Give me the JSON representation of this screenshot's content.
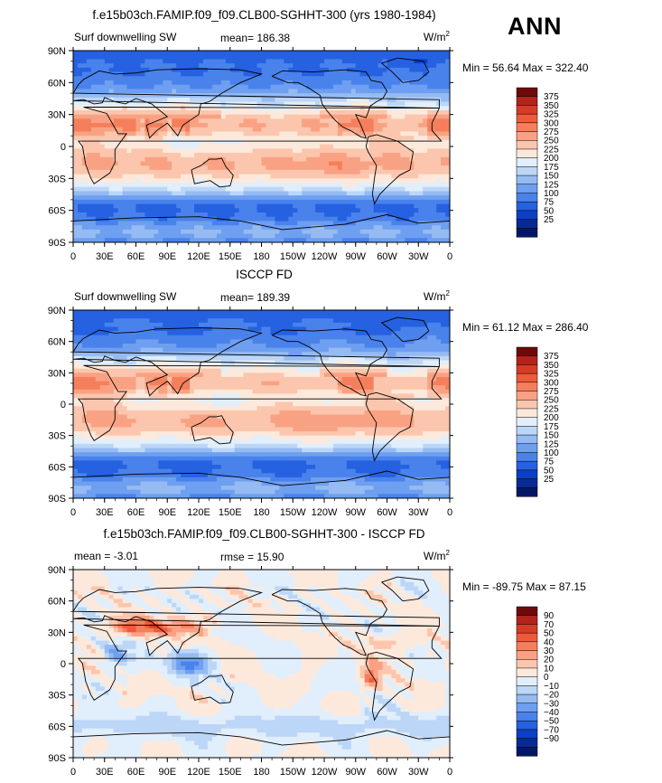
{
  "season": "ANN",
  "chart_data": [
    {
      "type": "heatmap",
      "title": "f.e15b03ch.FAMIP.f09_f09.CLB00-SGHHT-300 (yrs 1980-1984)",
      "left_label": "Surf downwelling SW",
      "stat_text": "mean= 186.38",
      "stat2_text": "",
      "units_text": "W/m",
      "units_sup": "2",
      "min_max_text": "Min =  56.64 Max = 322.40",
      "x_ticks": [
        "0",
        "30E",
        "60E",
        "90E",
        "120E",
        "150E",
        "180",
        "150W",
        "120W",
        "90W",
        "60W",
        "30W",
        "0"
      ],
      "y_ticks": [
        "90N",
        "60N",
        "30N",
        "0",
        "30S",
        "60S",
        "90S"
      ],
      "levels": [
        "375",
        "350",
        "325",
        "300",
        "275",
        "250",
        "225",
        "200",
        "175",
        "150",
        "125",
        "100",
        "75",
        "50",
        "25"
      ],
      "colors": [
        "#6e0a0a",
        "#b2231c",
        "#d63b27",
        "#ef5a3a",
        "#f57f5c",
        "#f9a283",
        "#fbc6ad",
        "#fde9dc",
        "#e1eefb",
        "#bcd6f7",
        "#95bbf2",
        "#6e9ff0",
        "#4a82ec",
        "#2561e0",
        "#0a3fc6",
        "#082a94",
        "#041766"
      ],
      "field": "model_sw",
      "mean": 186.38,
      "min": 56.64,
      "max": 322.4
    },
    {
      "type": "heatmap",
      "title": "ISCCP FD",
      "left_label": "Surf downwelling SW",
      "stat_text": "mean= 189.39",
      "stat2_text": "",
      "units_text": "W/m",
      "units_sup": "2",
      "min_max_text": "Min =  61.12 Max = 286.40",
      "x_ticks": [
        "0",
        "30E",
        "60E",
        "90E",
        "120E",
        "150E",
        "180",
        "150W",
        "120W",
        "90W",
        "60W",
        "30W",
        "0"
      ],
      "y_ticks": [
        "90N",
        "60N",
        "30N",
        "0",
        "30S",
        "60S",
        "90S"
      ],
      "levels": [
        "375",
        "350",
        "325",
        "300",
        "275",
        "250",
        "225",
        "200",
        "175",
        "150",
        "125",
        "100",
        "75",
        "50",
        "25"
      ],
      "colors": [
        "#6e0a0a",
        "#b2231c",
        "#d63b27",
        "#ef5a3a",
        "#f57f5c",
        "#f9a283",
        "#fbc6ad",
        "#fde9dc",
        "#e1eefb",
        "#bcd6f7",
        "#95bbf2",
        "#6e9ff0",
        "#4a82ec",
        "#2561e0",
        "#0a3fc6",
        "#082a94",
        "#041766"
      ],
      "field": "obs_sw",
      "mean": 189.39,
      "min": 61.12,
      "max": 286.4
    },
    {
      "type": "heatmap",
      "title": "f.e15b03ch.FAMIP.f09_f09.CLB00-SGHHT-300 - ISCCP FD",
      "left_label": "mean =   -3.01",
      "stat_text": "rmse =   15.90",
      "stat2_text": "",
      "units_text": "W/m",
      "units_sup": "2",
      "min_max_text": "Min = -89.75 Max =  87.15",
      "x_ticks": [
        "0",
        "30E",
        "60E",
        "90E",
        "120E",
        "150E",
        "180",
        "150W",
        "120W",
        "90W",
        "60W",
        "30W",
        "0"
      ],
      "y_ticks": [
        "90N",
        "60N",
        "30N",
        "0",
        "30S",
        "60S",
        "90S"
      ],
      "levels": [
        "90",
        "70",
        "50",
        "40",
        "30",
        "20",
        "10",
        "0",
        "−10",
        "−20",
        "−30",
        "−40",
        "−50",
        "−70",
        "−90"
      ],
      "colors": [
        "#6e0a0a",
        "#b2231c",
        "#d63b27",
        "#ef5a3a",
        "#f57f5c",
        "#f9a283",
        "#fbc6ad",
        "#fde9dc",
        "#e1eefb",
        "#bcd6f7",
        "#95bbf2",
        "#6e9ff0",
        "#4a82ec",
        "#2561e0",
        "#0a3fc6",
        "#082a94",
        "#041766"
      ],
      "field": "diff_sw",
      "mean": -3.01,
      "rmse": 15.9,
      "min": -89.75,
      "max": 87.15
    }
  ]
}
